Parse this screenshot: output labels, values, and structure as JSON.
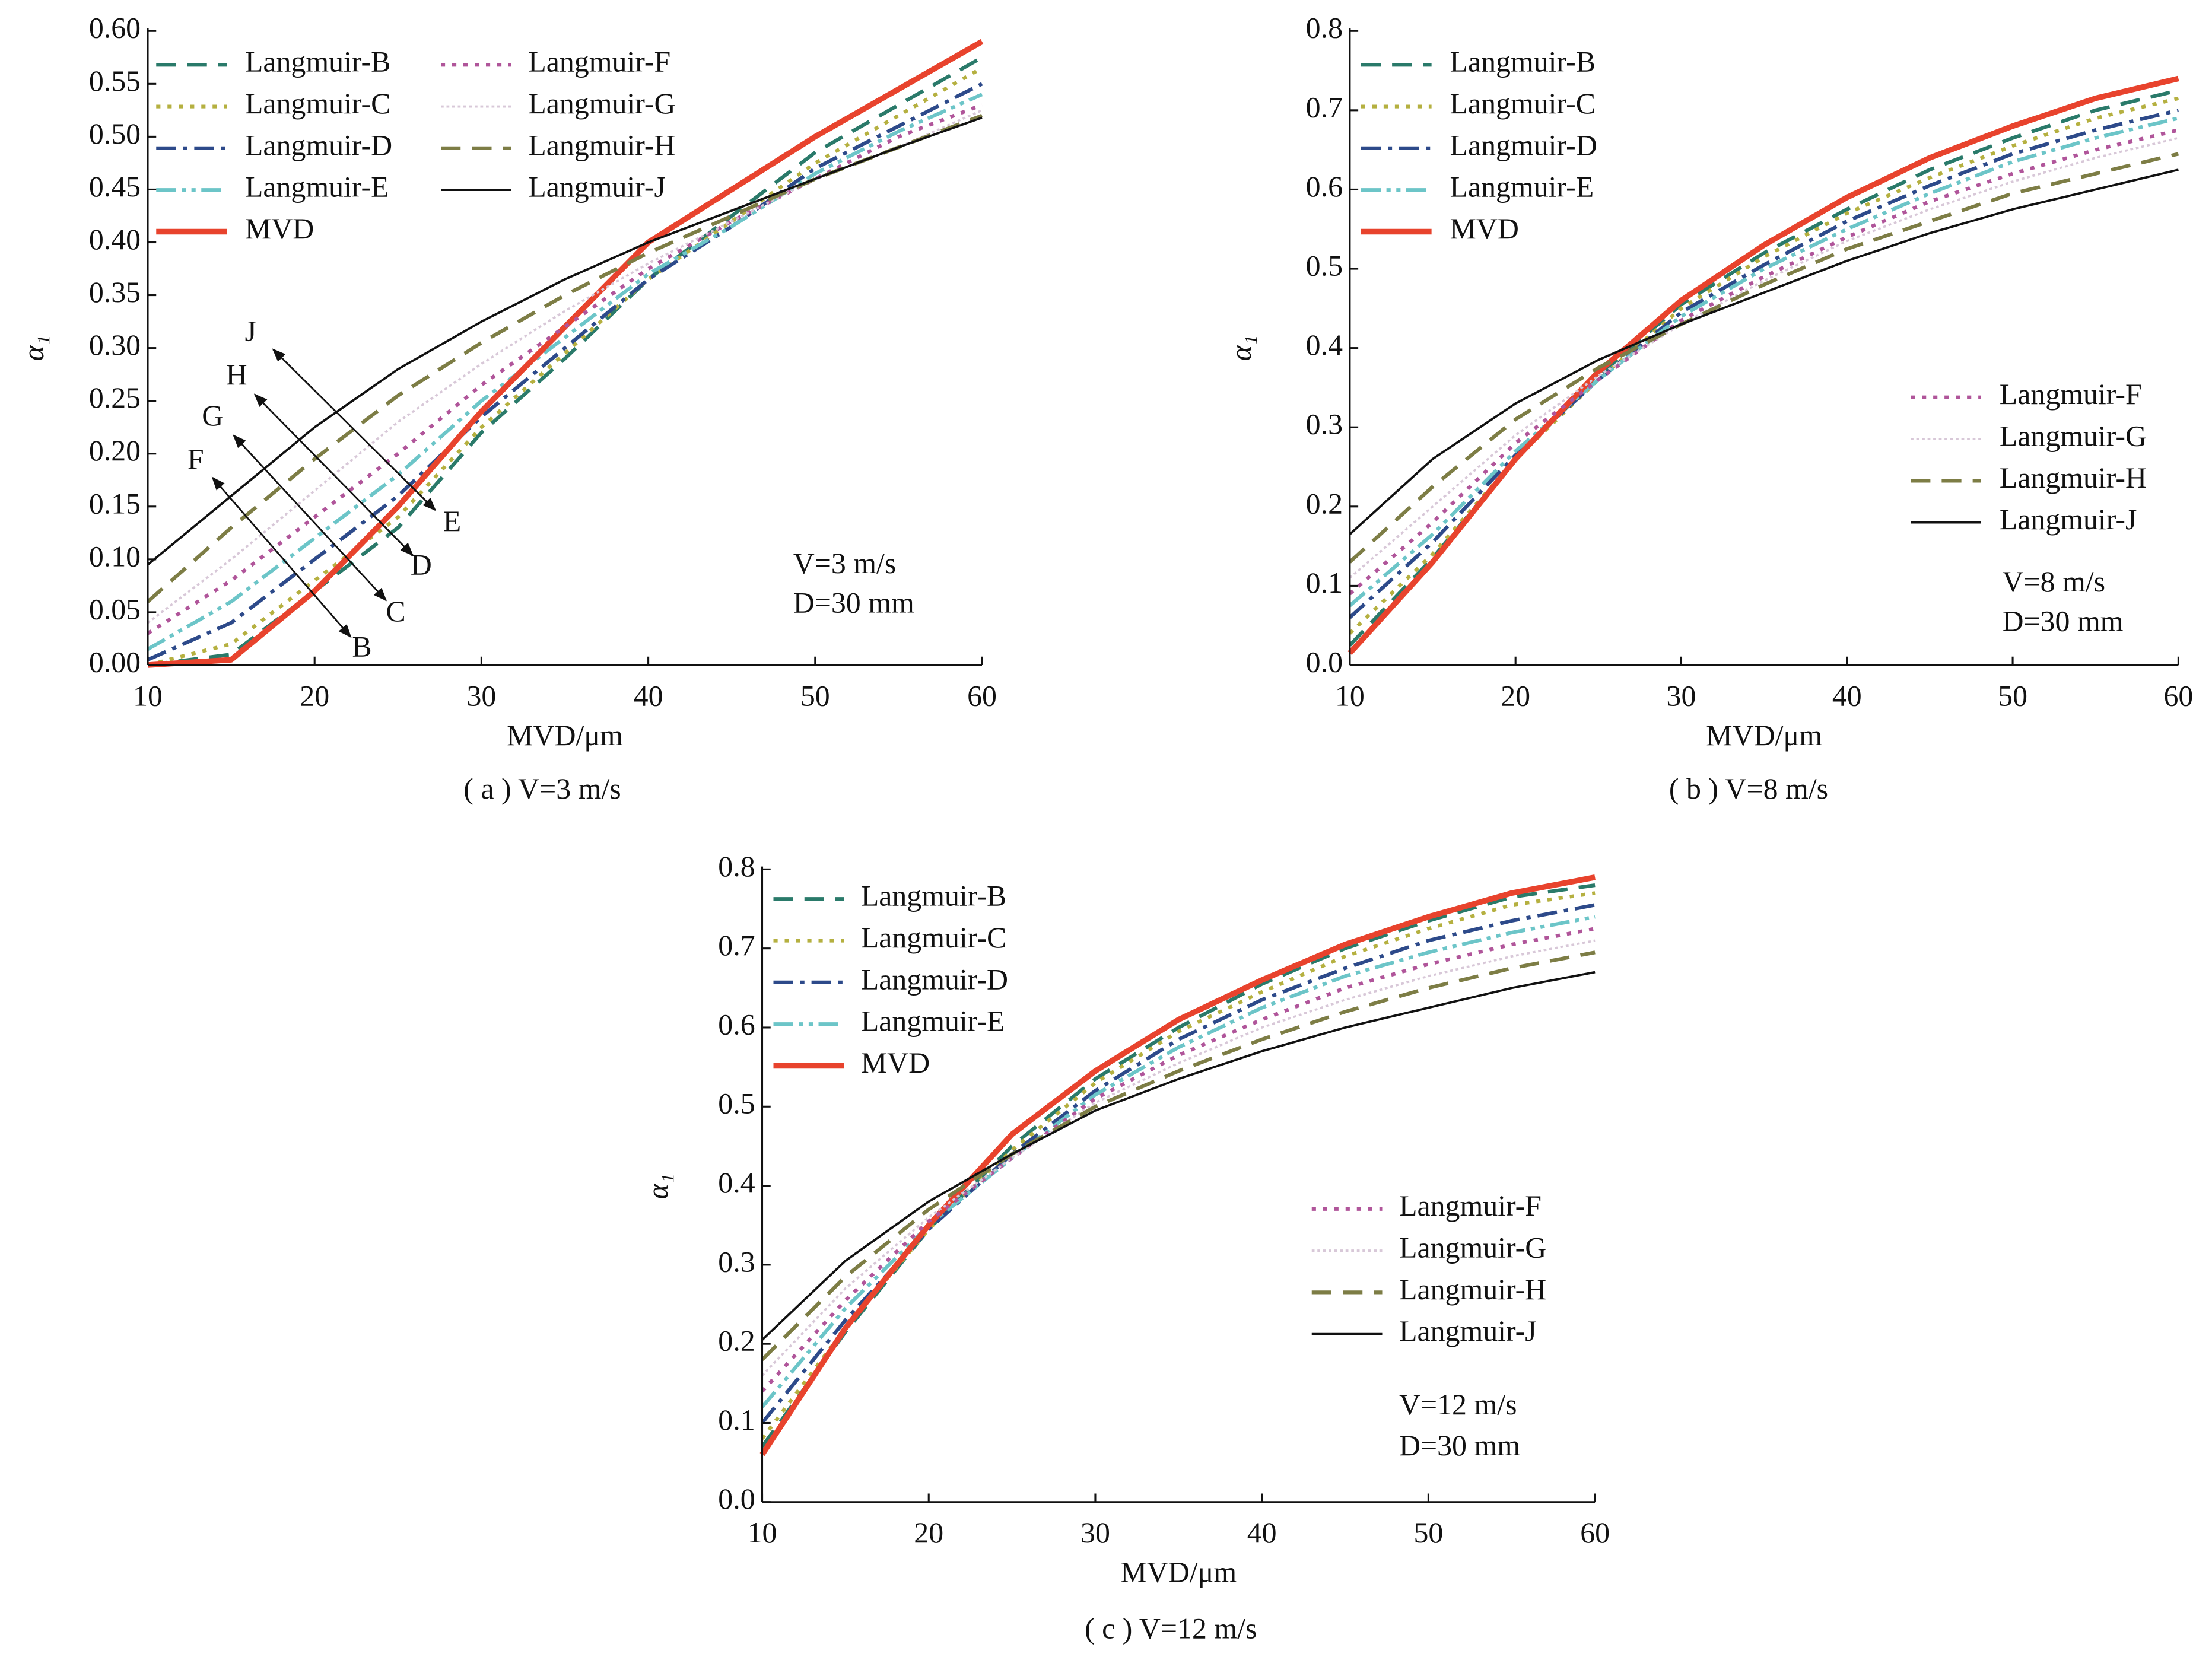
{
  "chart_data": [
    {
      "type": "line",
      "caption": "( a ) V=3 m/s",
      "x_label": "MVD/μm",
      "y_label": "α₁",
      "annotations": [
        "V=3 m/s",
        "D=30 mm"
      ],
      "arrow_labels": [
        "J",
        "H",
        "G",
        "F",
        "E",
        "D",
        "C",
        "B"
      ],
      "x": [
        10,
        15,
        20,
        25,
        30,
        35,
        40,
        45,
        50,
        55,
        60
      ],
      "xlim": [
        10,
        60
      ],
      "xticks": [
        10,
        20,
        30,
        40,
        50,
        60
      ],
      "ylim": [
        0,
        0.6
      ],
      "yticks": [
        {
          "value": 0,
          "label": "0.00"
        },
        {
          "value": 0.05,
          "label": "0.05"
        },
        {
          "value": 0.1,
          "label": "0.10"
        },
        {
          "value": 0.15,
          "label": "0.15"
        },
        {
          "value": 0.2,
          "label": "0.20"
        },
        {
          "value": 0.25,
          "label": "0.25"
        },
        {
          "value": 0.3,
          "label": "0.30"
        },
        {
          "value": 0.35,
          "label": "0.35"
        },
        {
          "value": 0.4,
          "label": "0.40"
        },
        {
          "value": 0.45,
          "label": "0.45"
        },
        {
          "value": 0.5,
          "label": "0.50"
        },
        {
          "value": 0.55,
          "label": "0.55"
        },
        {
          "value": 0.6,
          "label": "0.60"
        }
      ],
      "series": [
        {
          "name": "Langmuir-B",
          "color": "#2a7a6a",
          "dash": "dashed",
          "values": [
            0,
            0.01,
            0.07,
            0.13,
            0.22,
            0.29,
            0.365,
            0.425,
            0.485,
            0.53,
            0.575
          ]
        },
        {
          "name": "Langmuir-C",
          "color": "#b5b040",
          "dash": "dotted",
          "values": [
            0,
            0.02,
            0.08,
            0.14,
            0.225,
            0.295,
            0.365,
            0.42,
            0.475,
            0.52,
            0.565
          ]
        },
        {
          "name": "Langmuir-D",
          "color": "#2d4a8a",
          "dash": "dashdot",
          "values": [
            0.005,
            0.04,
            0.1,
            0.16,
            0.235,
            0.3,
            0.365,
            0.415,
            0.47,
            0.51,
            0.55
          ]
        },
        {
          "name": "Langmuir-E",
          "color": "#6cc5c8",
          "dash": "dashdotdot",
          "values": [
            0.015,
            0.06,
            0.12,
            0.18,
            0.25,
            0.31,
            0.37,
            0.415,
            0.465,
            0.505,
            0.54
          ]
        },
        {
          "name": "MVD",
          "color": "#e8432d",
          "dash": "thick",
          "values": [
            0,
            0.005,
            0.07,
            0.15,
            0.24,
            0.32,
            0.4,
            0.45,
            0.5,
            0.545,
            0.59
          ]
        },
        {
          "name": "Langmuir-F",
          "color": "#b0559a",
          "dash": "dotted",
          "values": [
            0.03,
            0.08,
            0.14,
            0.2,
            0.265,
            0.32,
            0.375,
            0.42,
            0.46,
            0.5,
            0.53
          ]
        },
        {
          "name": "Langmuir-G",
          "color": "#d8c8d8",
          "dash": "fine-dotted",
          "values": [
            0.04,
            0.1,
            0.165,
            0.23,
            0.285,
            0.335,
            0.38,
            0.42,
            0.46,
            0.49,
            0.525
          ]
        },
        {
          "name": "Langmuir-H",
          "color": "#7d7d45",
          "dash": "dashed",
          "values": [
            0.06,
            0.13,
            0.195,
            0.255,
            0.305,
            0.35,
            0.39,
            0.425,
            0.46,
            0.49,
            0.52
          ]
        },
        {
          "name": "Langmuir-J",
          "color": "#111111",
          "dash": "solid",
          "values": [
            0.095,
            0.16,
            0.225,
            0.28,
            0.325,
            0.365,
            0.4,
            0.43,
            0.46,
            0.49,
            0.518
          ]
        }
      ]
    },
    {
      "type": "line",
      "caption": "( b ) V=8 m/s",
      "x_label": "MVD/μm",
      "y_label": "α₁",
      "annotations": [
        "V=8 m/s",
        "D=30 mm"
      ],
      "x": [
        10,
        15,
        20,
        25,
        30,
        35,
        40,
        45,
        50,
        55,
        60
      ],
      "xlim": [
        10,
        60
      ],
      "xticks": [
        10,
        20,
        30,
        40,
        50,
        60
      ],
      "ylim": [
        0,
        0.8
      ],
      "yticks": [
        {
          "value": 0,
          "label": "0.0"
        },
        0.1,
        0.2,
        0.3,
        0.4,
        0.5,
        0.6,
        0.7,
        0.8
      ],
      "series": [
        {
          "name": "Langmuir-B",
          "color": "#2a7a6a",
          "dash": "dashed",
          "values": [
            0.025,
            0.135,
            0.26,
            0.365,
            0.455,
            0.52,
            0.575,
            0.625,
            0.665,
            0.7,
            0.725
          ]
        },
        {
          "name": "Langmuir-C",
          "color": "#b5b040",
          "dash": "dotted",
          "values": [
            0.04,
            0.14,
            0.26,
            0.36,
            0.45,
            0.515,
            0.57,
            0.615,
            0.655,
            0.69,
            0.715
          ]
        },
        {
          "name": "Langmuir-D",
          "color": "#2d4a8a",
          "dash": "dashdot",
          "values": [
            0.06,
            0.155,
            0.265,
            0.36,
            0.445,
            0.505,
            0.56,
            0.605,
            0.645,
            0.675,
            0.7
          ]
        },
        {
          "name": "Langmuir-E",
          "color": "#6cc5c8",
          "dash": "dashdotdot",
          "values": [
            0.075,
            0.165,
            0.27,
            0.36,
            0.44,
            0.5,
            0.55,
            0.595,
            0.635,
            0.665,
            0.69
          ]
        },
        {
          "name": "MVD",
          "color": "#e8432d",
          "dash": "thick",
          "values": [
            0.015,
            0.13,
            0.26,
            0.37,
            0.46,
            0.53,
            0.59,
            0.64,
            0.68,
            0.715,
            0.74
          ]
        },
        {
          "name": "Langmuir-F",
          "color": "#b0559a",
          "dash": "dotted",
          "values": [
            0.09,
            0.18,
            0.28,
            0.36,
            0.435,
            0.49,
            0.54,
            0.585,
            0.62,
            0.65,
            0.675
          ]
        },
        {
          "name": "Langmuir-G",
          "color": "#d8c8d8",
          "dash": "fine-dotted",
          "values": [
            0.11,
            0.2,
            0.29,
            0.365,
            0.43,
            0.485,
            0.535,
            0.575,
            0.61,
            0.64,
            0.665
          ]
        },
        {
          "name": "Langmuir-H",
          "color": "#7d7d45",
          "dash": "dashed",
          "values": [
            0.13,
            0.225,
            0.31,
            0.375,
            0.43,
            0.48,
            0.525,
            0.56,
            0.595,
            0.62,
            0.645
          ]
        },
        {
          "name": "Langmuir-J",
          "color": "#111111",
          "dash": "solid",
          "values": [
            0.165,
            0.26,
            0.33,
            0.385,
            0.43,
            0.47,
            0.51,
            0.545,
            0.575,
            0.6,
            0.625
          ]
        }
      ]
    },
    {
      "type": "line",
      "caption": "( c ) V=12 m/s",
      "x_label": "MVD/μm",
      "y_label": "α₁",
      "annotations": [
        "V=12 m/s",
        "D=30 mm"
      ],
      "x": [
        10,
        15,
        20,
        25,
        30,
        35,
        40,
        45,
        50,
        55,
        60
      ],
      "xlim": [
        10,
        60
      ],
      "xticks": [
        10,
        20,
        30,
        40,
        50,
        60
      ],
      "ylim": [
        0,
        0.8
      ],
      "yticks": [
        {
          "value": 0,
          "label": "0.0"
        },
        0.1,
        0.2,
        0.3,
        0.4,
        0.5,
        0.6,
        0.7,
        0.8
      ],
      "series": [
        {
          "name": "Langmuir-B",
          "color": "#2a7a6a",
          "dash": "dashed",
          "values": [
            0.07,
            0.215,
            0.345,
            0.45,
            0.535,
            0.6,
            0.655,
            0.7,
            0.735,
            0.765,
            0.78
          ]
        },
        {
          "name": "Langmuir-C",
          "color": "#b5b040",
          "dash": "dotted",
          "values": [
            0.08,
            0.22,
            0.345,
            0.445,
            0.53,
            0.595,
            0.645,
            0.69,
            0.725,
            0.755,
            0.77
          ]
        },
        {
          "name": "Langmuir-D",
          "color": "#2d4a8a",
          "dash": "dashdot",
          "values": [
            0.1,
            0.23,
            0.345,
            0.44,
            0.52,
            0.585,
            0.635,
            0.675,
            0.71,
            0.735,
            0.755
          ]
        },
        {
          "name": "Langmuir-E",
          "color": "#6cc5c8",
          "dash": "dashdotdot",
          "values": [
            0.12,
            0.245,
            0.35,
            0.435,
            0.515,
            0.575,
            0.625,
            0.665,
            0.695,
            0.72,
            0.74
          ]
        },
        {
          "name": "MVD",
          "color": "#e8432d",
          "dash": "thick",
          "values": [
            0.06,
            0.22,
            0.35,
            0.465,
            0.545,
            0.61,
            0.66,
            0.705,
            0.74,
            0.77,
            0.79
          ]
        },
        {
          "name": "Langmuir-F",
          "color": "#b0559a",
          "dash": "dotted",
          "values": [
            0.14,
            0.255,
            0.355,
            0.435,
            0.51,
            0.565,
            0.61,
            0.65,
            0.68,
            0.705,
            0.725
          ]
        },
        {
          "name": "Langmuir-G",
          "color": "#d8c8d8",
          "dash": "fine-dotted",
          "values": [
            0.16,
            0.27,
            0.36,
            0.435,
            0.505,
            0.555,
            0.6,
            0.635,
            0.665,
            0.69,
            0.71
          ]
        },
        {
          "name": "Langmuir-H",
          "color": "#7d7d45",
          "dash": "dashed",
          "values": [
            0.18,
            0.285,
            0.37,
            0.44,
            0.5,
            0.545,
            0.585,
            0.62,
            0.65,
            0.675,
            0.695
          ]
        },
        {
          "name": "Langmuir-J",
          "color": "#111111",
          "dash": "solid",
          "values": [
            0.205,
            0.305,
            0.38,
            0.44,
            0.495,
            0.535,
            0.57,
            0.6,
            0.625,
            0.65,
            0.67
          ]
        }
      ]
    }
  ]
}
